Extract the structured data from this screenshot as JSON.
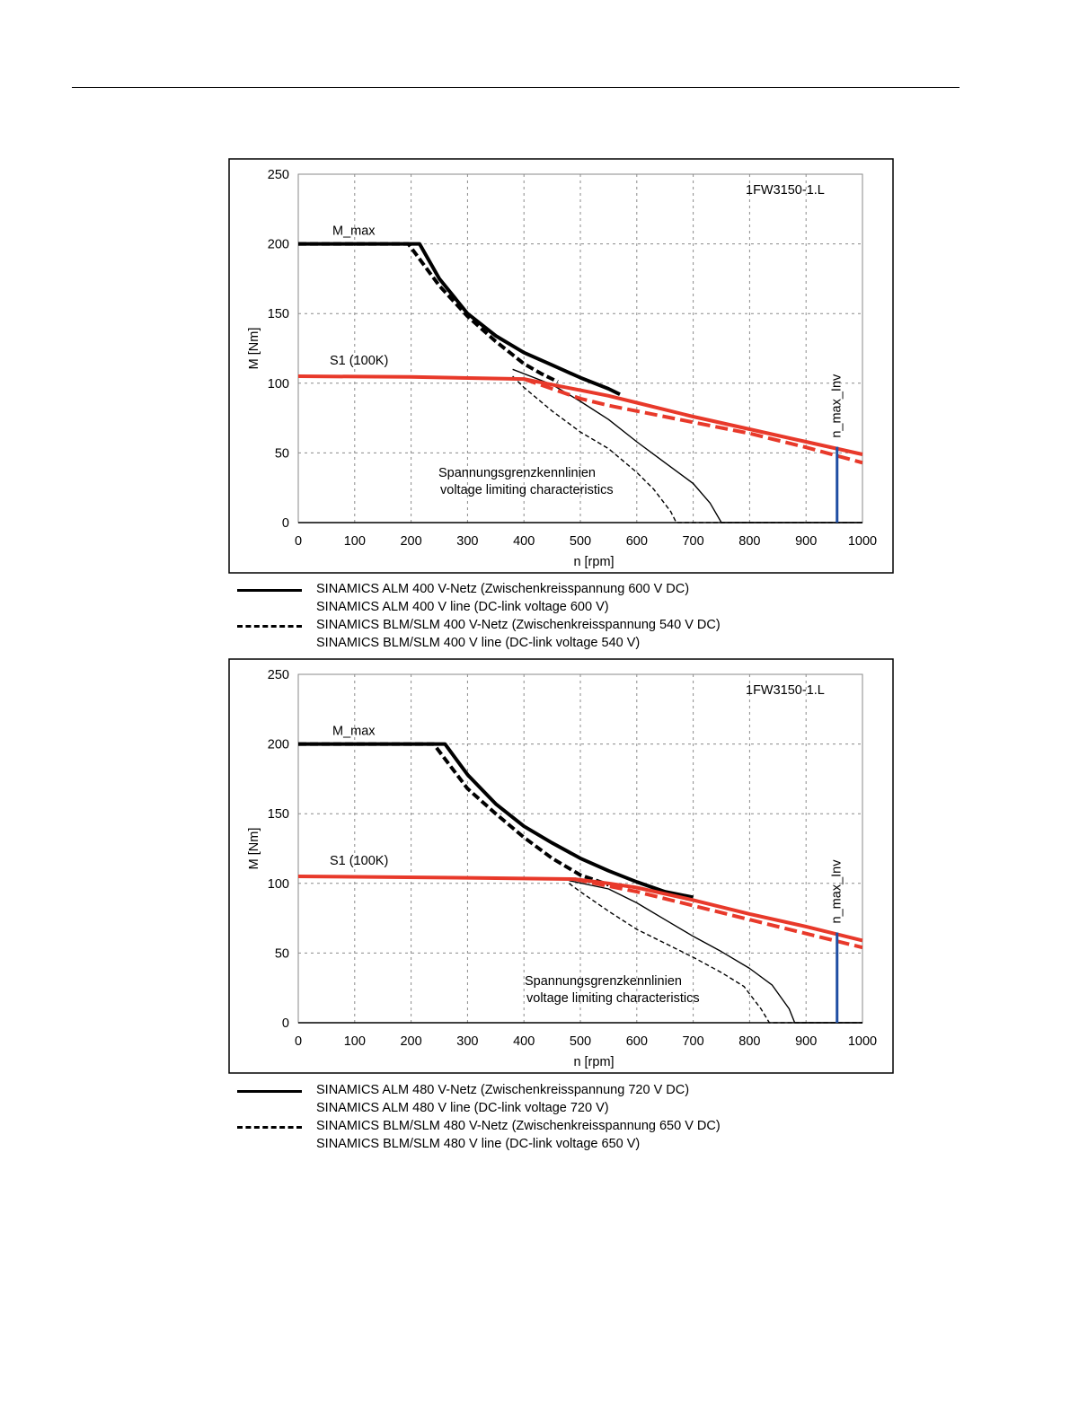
{
  "chart_data": [
    {
      "type": "line",
      "title": "",
      "annotation_id": "1FW3150-1.L",
      "xlabel": "n [rpm]",
      "ylabel": "M [Nm]",
      "xlim": [
        0,
        1000
      ],
      "ylim": [
        0,
        250
      ],
      "xticks": [
        0,
        100,
        200,
        300,
        400,
        500,
        600,
        700,
        800,
        900,
        1000
      ],
      "yticks": [
        0,
        50,
        100,
        150,
        200,
        250
      ],
      "grid": true,
      "labels": {
        "mmax": "M_max",
        "s1": "S1 (100K)",
        "nmax": "n_max_Inv",
        "vlc_de": "Spannungsgrenzkennlinien",
        "vlc_en": "voltage limiting characteristics"
      },
      "n_max_inv": 955,
      "series": [
        {
          "style": "black-thick-solid",
          "color": "#000000",
          "x": [
            0,
            215,
            250,
            300,
            350,
            400,
            450,
            500,
            550,
            570
          ],
          "y": [
            200,
            200,
            175,
            150,
            134,
            122,
            113,
            104,
            96,
            92
          ]
        },
        {
          "style": "black-thick-dashed",
          "color": "#000000",
          "x": [
            0,
            195,
            250,
            300,
            350,
            400,
            430,
            460
          ],
          "y": [
            200,
            200,
            170,
            148,
            130,
            114,
            107,
            101
          ]
        },
        {
          "style": "black-thin-solid",
          "color": "#000000",
          "x": [
            380,
            450,
            500,
            550,
            600,
            650,
            700,
            730,
            750,
            1000
          ],
          "y": [
            110,
            99,
            87,
            74,
            58,
            43,
            28,
            14,
            0,
            0
          ]
        },
        {
          "style": "black-thin-dashed",
          "color": "#000000",
          "x": [
            380,
            400,
            450,
            500,
            550,
            600,
            630,
            660,
            670,
            700,
            1000
          ],
          "y": [
            105,
            97,
            80,
            65,
            53,
            36,
            24,
            8,
            0,
            0,
            0
          ]
        },
        {
          "style": "red-solid",
          "color": "#e8392a",
          "x": [
            0,
            200,
            400,
            450,
            500,
            550,
            600,
            700,
            800,
            900,
            1000
          ],
          "y": [
            105,
            104.5,
            103,
            99,
            95,
            91,
            86,
            76,
            67,
            58,
            49
          ]
        },
        {
          "style": "red-dashed",
          "color": "#e8392a",
          "x": [
            400,
            450,
            500,
            550,
            600,
            700,
            800,
            900,
            1000
          ],
          "y": [
            103,
            96,
            89,
            84,
            80,
            72,
            64,
            54,
            43
          ]
        }
      ],
      "legend": [
        {
          "style": "solid",
          "de": "SINAMICS ALM  400 V-Netz (Zwischenkreisspannung 600 V DC)",
          "en": "SINAMICS ALM  400 V line (DC-link voltage 600 V)"
        },
        {
          "style": "dashed",
          "de": "SINAMICS BLM/SLM  400 V-Netz (Zwischenkreisspannung 540 V DC)",
          "en": "SINAMICS BLM/SLM  400 V line (DC-link voltage 540 V)"
        }
      ]
    },
    {
      "type": "line",
      "title": "",
      "annotation_id": "1FW3150-1.L",
      "xlabel": "n [rpm]",
      "ylabel": "M [Nm]",
      "xlim": [
        0,
        1000
      ],
      "ylim": [
        0,
        250
      ],
      "xticks": [
        0,
        100,
        200,
        300,
        400,
        500,
        600,
        700,
        800,
        900,
        1000
      ],
      "yticks": [
        0,
        50,
        100,
        150,
        200,
        250
      ],
      "grid": true,
      "labels": {
        "mmax": "M_max",
        "s1": "S1 (100K)",
        "nmax": "n_max_Inv",
        "vlc_de": "Spannungsgrenzkennlinien",
        "vlc_en": "voltage limiting characteristics"
      },
      "n_max_inv": 955,
      "series": [
        {
          "style": "black-thick-solid",
          "color": "#000000",
          "x": [
            0,
            260,
            300,
            350,
            400,
            450,
            500,
            550,
            600,
            650,
            700
          ],
          "y": [
            200,
            200,
            178,
            157,
            141,
            129,
            118,
            109,
            101,
            94,
            90
          ]
        },
        {
          "style": "black-thick-dashed",
          "color": "#000000",
          "x": [
            0,
            240,
            300,
            350,
            400,
            450,
            500,
            550
          ],
          "y": [
            200,
            200,
            168,
            150,
            133,
            118,
            106,
            99
          ]
        },
        {
          "style": "black-thin-solid",
          "color": "#000000",
          "x": [
            480,
            550,
            600,
            650,
            700,
            750,
            800,
            840,
            870,
            880,
            1000
          ],
          "y": [
            102,
            96,
            86,
            74,
            62,
            51,
            39,
            27,
            10,
            0,
            0
          ]
        },
        {
          "style": "black-thin-dashed",
          "color": "#000000",
          "x": [
            480,
            500,
            550,
            600,
            650,
            700,
            750,
            790,
            820,
            835,
            1000
          ],
          "y": [
            100,
            94,
            80,
            67,
            57,
            47,
            36,
            26,
            10,
            0,
            0
          ]
        },
        {
          "style": "red-solid",
          "color": "#e8392a",
          "x": [
            0,
            300,
            490,
            550,
            600,
            700,
            800,
            900,
            1000
          ],
          "y": [
            105,
            104,
            103,
            100,
            97,
            88,
            78,
            69,
            59
          ]
        },
        {
          "style": "red-dashed",
          "color": "#e8392a",
          "x": [
            490,
            550,
            600,
            700,
            800,
            900,
            1000
          ],
          "y": [
            103,
            98,
            94,
            84,
            74,
            64,
            54
          ]
        }
      ],
      "legend": [
        {
          "style": "solid",
          "de": "SINAMICS ALM  480 V-Netz (Zwischenkreisspannung 720 V DC)",
          "en": "SINAMICS ALM  480 V line (DC-link voltage 720 V)"
        },
        {
          "style": "dashed",
          "de": "SINAMICS BLM/SLM  480 V-Netz (Zwischenkreisspannung 650 V DC)",
          "en": "SINAMICS BLM/SLM  480 V line (DC-link voltage 650 V)"
        }
      ]
    }
  ]
}
